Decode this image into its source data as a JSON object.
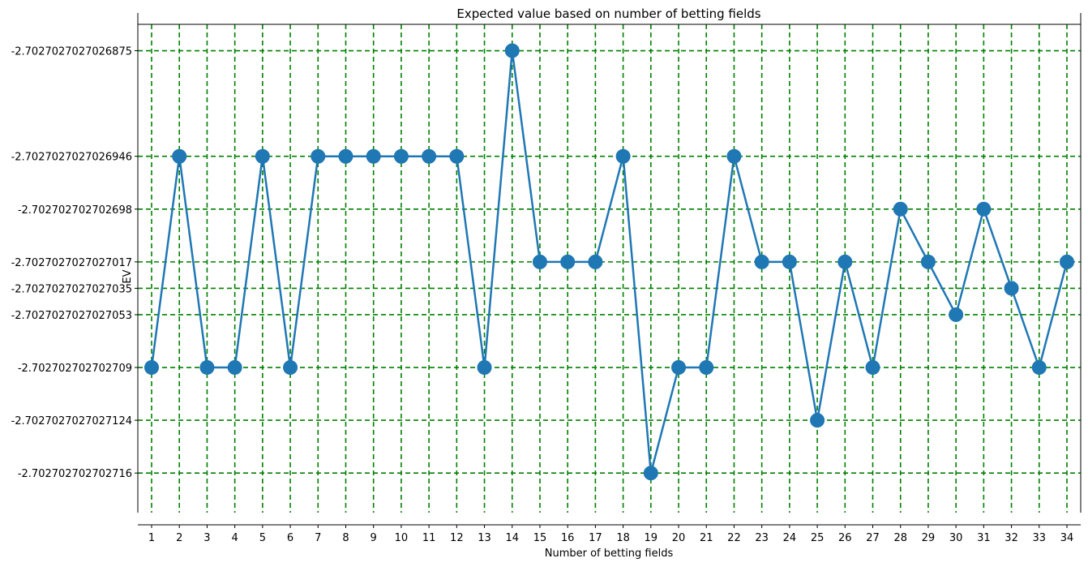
{
  "chart_data": {
    "type": "line",
    "title": "Expected value based on number of betting fields",
    "xlabel": "Number of betting fields",
    "ylabel": "EV",
    "grid": true,
    "grid_color": "#008000",
    "line_color": "#1f77b4",
    "marker_color": "#1f77b4",
    "x": [
      1,
      2,
      3,
      4,
      5,
      6,
      7,
      8,
      9,
      10,
      11,
      12,
      13,
      14,
      15,
      16,
      17,
      18,
      19,
      20,
      21,
      22,
      23,
      24,
      25,
      26,
      27,
      28,
      29,
      30,
      31,
      32,
      33,
      34
    ],
    "y_tick_labels": [
      "-2.7027027027026875",
      "-2.7027027027026946",
      "-2.702702702702698",
      "-2.7027027027027017",
      "-2.7027027027027035",
      "-2.7027027027027053",
      "-2.702702702702709",
      "-2.7027027027027124",
      "-2.702702702702716"
    ],
    "y_tick_values": [
      -2.7027027027026875,
      -2.7027027027026946,
      -2.702702702702698,
      -2.7027027027027017,
      -2.7027027027027035,
      -2.7027027027027053,
      -2.702702702702709,
      -2.7027027027027124,
      -2.702702702702716
    ],
    "ylim": [
      -2.7027027027027186,
      -2.7027027027026858
    ],
    "series": [
      {
        "values": [
          -2.702702702702709,
          -2.7027027027026946,
          -2.702702702702709,
          -2.702702702702709,
          -2.7027027027026946,
          -2.702702702702709,
          -2.7027027027026946,
          -2.7027027027026946,
          -2.7027027027026946,
          -2.7027027027026946,
          -2.7027027027026946,
          -2.7027027027026946,
          -2.702702702702709,
          -2.7027027027026875,
          -2.7027027027027017,
          -2.7027027027027017,
          -2.7027027027027017,
          -2.7027027027026946,
          -2.702702702702716,
          -2.702702702702709,
          -2.702702702702709,
          -2.7027027027026946,
          -2.7027027027027017,
          -2.7027027027027017,
          -2.7027027027027124,
          -2.7027027027027017,
          -2.702702702702709,
          -2.702702702702698,
          -2.7027027027027017,
          -2.7027027027027053,
          -2.702702702702698,
          -2.7027027027027035,
          -2.702702702702709,
          -2.7027027027027017
        ]
      }
    ]
  }
}
